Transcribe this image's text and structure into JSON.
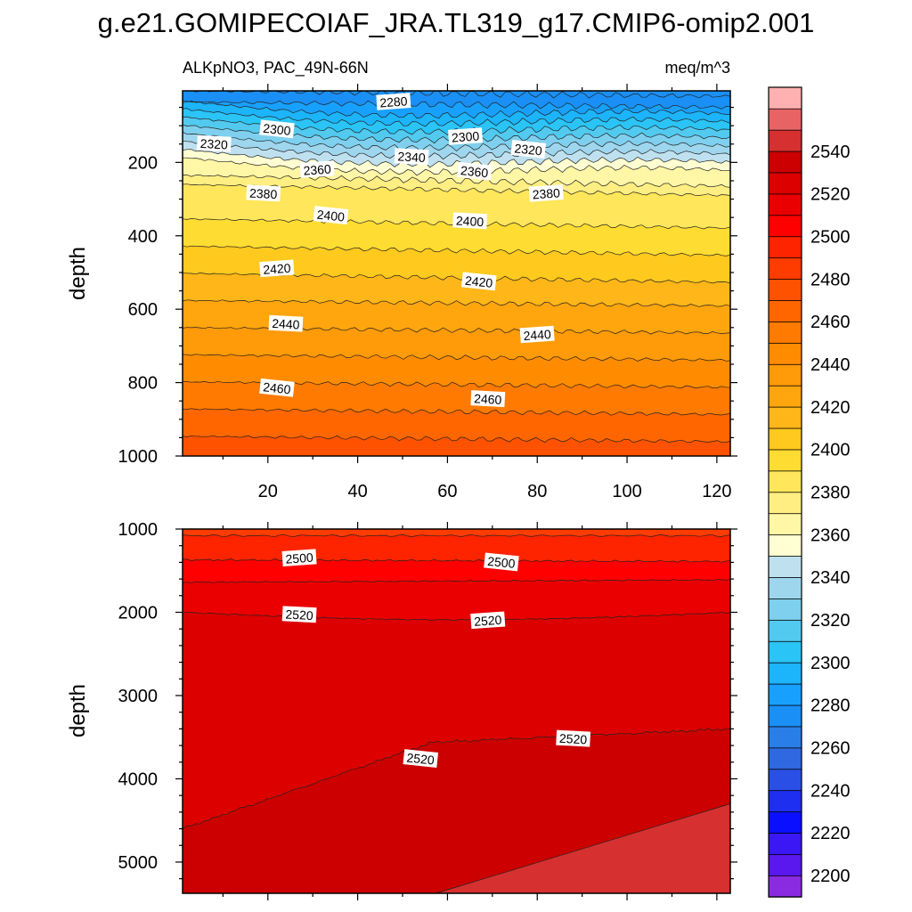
{
  "title": "g.e21.GOMIPECOIAF_JRA.TL319_g17.CMIP6-omip2.001",
  "subtitle_left": "ALKpNO3, PAC_49N-66N",
  "subtitle_right": "meq/m^3",
  "colors": {
    "palette": [
      "#8a2be2",
      "#5a17ee",
      "#3a17f4",
      "#0a10ff",
      "#1e2ff0",
      "#2a4fe6",
      "#2f68e0",
      "#2a7ee8",
      "#1a8ff5",
      "#18a0ff",
      "#1cb4fa",
      "#2ac4f6",
      "#52caf0",
      "#7ed0ee",
      "#9ed6ee",
      "#bfe1ef",
      "#fffdd2",
      "#fff6a6",
      "#ffee82",
      "#ffe65a",
      "#ffdc32",
      "#ffc91e",
      "#ffb618",
      "#ffa50e",
      "#ff9a08",
      "#ff8c00",
      "#ff7a00",
      "#ff6600",
      "#ff5200",
      "#ff3c00",
      "#ff2400",
      "#ff0000",
      "#ea0000",
      "#dc0000",
      "#cc0000",
      "#d63030",
      "#e86464",
      "#ffb0b0"
    ],
    "axis": "#000000",
    "contour_line": "#222222"
  },
  "chart_data": [
    {
      "type": "contour",
      "name": "upper-panel",
      "xlabel": "",
      "ylabel": "depth",
      "xlim": [
        1,
        123
      ],
      "ylim": [
        1000,
        5
      ],
      "x_ticks": [
        20,
        40,
        60,
        80,
        100,
        120
      ],
      "y_ticks": [
        200,
        400,
        600,
        800,
        1000
      ],
      "contour_labels": [
        {
          "text": "2280",
          "x": 48,
          "y": 35
        },
        {
          "text": "2300",
          "x": 22,
          "y": 110
        },
        {
          "text": "2320",
          "x": 8,
          "y": 150
        },
        {
          "text": "2300",
          "x": 64,
          "y": 130
        },
        {
          "text": "2320",
          "x": 78,
          "y": 165
        },
        {
          "text": "2340",
          "x": 52,
          "y": 185
        },
        {
          "text": "2360",
          "x": 31,
          "y": 220
        },
        {
          "text": "2360",
          "x": 66,
          "y": 225
        },
        {
          "text": "2380",
          "x": 19,
          "y": 285
        },
        {
          "text": "2380",
          "x": 82,
          "y": 285
        },
        {
          "text": "2400",
          "x": 34,
          "y": 345
        },
        {
          "text": "2400",
          "x": 65,
          "y": 360
        },
        {
          "text": "2420",
          "x": 22,
          "y": 490
        },
        {
          "text": "2420",
          "x": 67,
          "y": 525
        },
        {
          "text": "2440",
          "x": 24,
          "y": 640
        },
        {
          "text": "2440",
          "x": 80,
          "y": 670
        },
        {
          "text": "2460",
          "x": 22,
          "y": 815
        },
        {
          "text": "2460",
          "x": 69,
          "y": 845
        }
      ]
    },
    {
      "type": "contour",
      "name": "lower-panel",
      "xlabel": "",
      "ylabel": "depth",
      "xlim": [
        1,
        123
      ],
      "ylim": [
        5375,
        1000
      ],
      "x_ticks": [
        20,
        40,
        60,
        80,
        100,
        120
      ],
      "y_ticks": [
        1000,
        2000,
        3000,
        4000,
        5000
      ],
      "contour_labels": [
        {
          "text": "2500",
          "x": 27,
          "y": 1350
        },
        {
          "text": "2500",
          "x": 72,
          "y": 1400
        },
        {
          "text": "2520",
          "x": 27,
          "y": 2030
        },
        {
          "text": "2520",
          "x": 69,
          "y": 2100
        },
        {
          "text": "2520",
          "x": 54,
          "y": 3760
        },
        {
          "text": "2520",
          "x": 88,
          "y": 3520
        }
      ]
    }
  ],
  "colorbar": {
    "levels": [
      2190,
      2200,
      2210,
      2220,
      2230,
      2240,
      2250,
      2260,
      2270,
      2280,
      2290,
      2300,
      2310,
      2320,
      2330,
      2340,
      2350,
      2360,
      2370,
      2380,
      2390,
      2400,
      2410,
      2420,
      2430,
      2440,
      2450,
      2460,
      2470,
      2480,
      2490,
      2500,
      2510,
      2520,
      2530,
      2540,
      2550,
      2560
    ],
    "tick_labels": [
      "2200",
      "2220",
      "2240",
      "2260",
      "2280",
      "2300",
      "2320",
      "2340",
      "2360",
      "2380",
      "2400",
      "2420",
      "2440",
      "2460",
      "2480",
      "2500",
      "2520",
      "2540"
    ]
  }
}
